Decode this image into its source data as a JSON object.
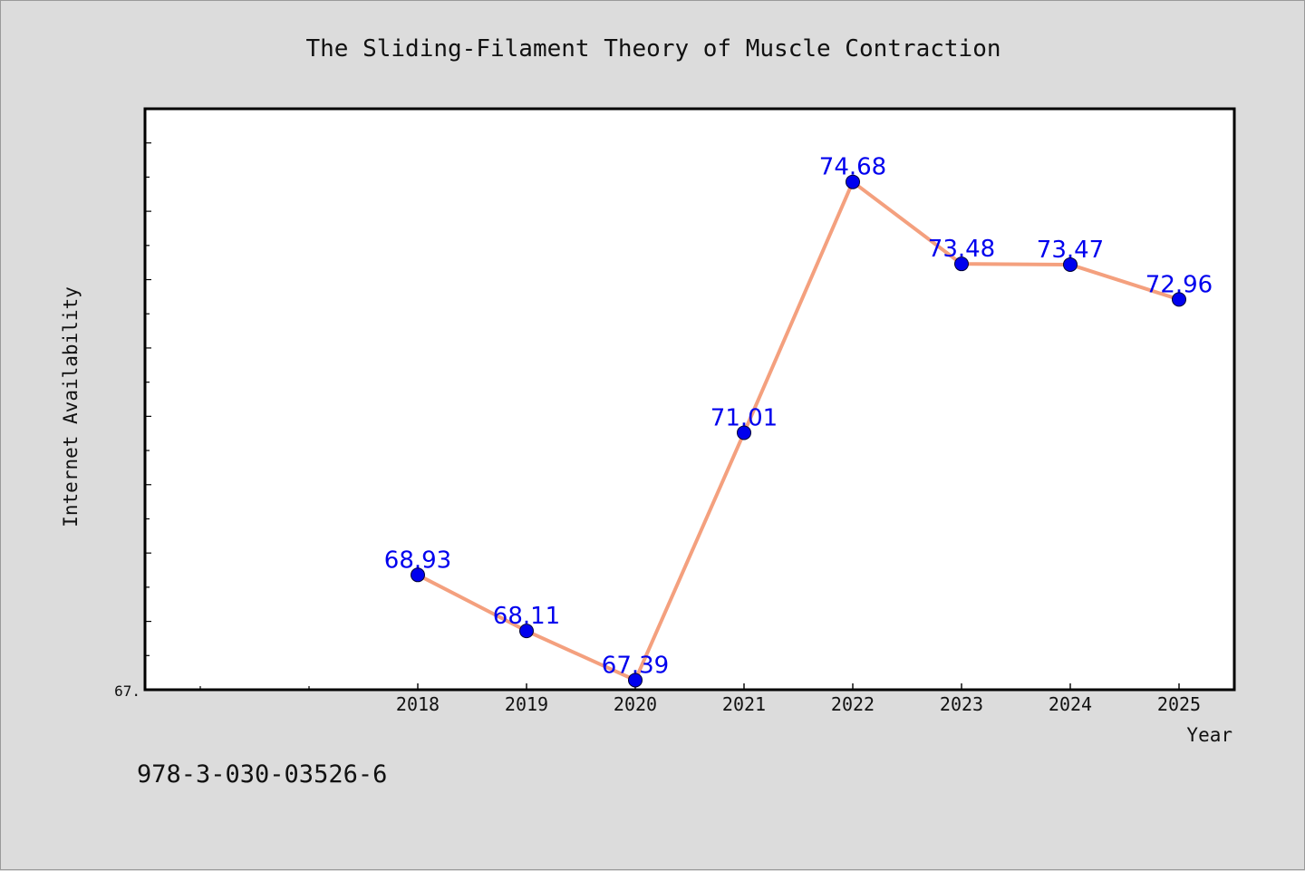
{
  "chart_data": {
    "type": "line",
    "title": "The Sliding-Filament Theory of Muscle Contraction",
    "xlabel": "Year",
    "ylabel": "Internet Availability",
    "categories": [
      "2018",
      "2019",
      "2020",
      "2021",
      "2022",
      "2023",
      "2024",
      "2025"
    ],
    "values": [
      68.93,
      68.11,
      67.39,
      71.01,
      74.68,
      73.48,
      73.47,
      72.96
    ],
    "data_labels": [
      "68.93",
      "68.11",
      "67.39",
      "71.01",
      "74.68",
      "73.48",
      "73.47",
      "72.96"
    ],
    "ylim": [
      67.25,
      75.75
    ],
    "y_tick_labels": [
      "67."
    ],
    "grid": false,
    "legend": "none",
    "line_color": "#f4a07e",
    "marker_color": "#0000ee",
    "label_color": "#0000ee"
  },
  "footnote": "978-3-030-03526-6"
}
